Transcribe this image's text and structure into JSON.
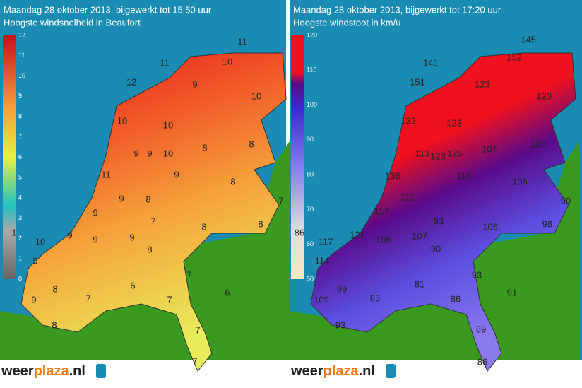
{
  "panels": [
    {
      "title": "Maandag 28 oktober 2013, bijgewerkt tot 15:50 uur",
      "subtitle": "Hoogste windsnelheid in Beaufort",
      "legend": [
        "0",
        "1",
        "2",
        "3",
        "4",
        "5",
        "6",
        "7",
        "8",
        "9",
        "10",
        "11",
        "12"
      ],
      "labels": [
        "11",
        "11",
        "10",
        "12",
        "9",
        "10",
        "10",
        "10",
        "9",
        "9",
        "10",
        "8",
        "8",
        "11",
        "9",
        "8",
        "9",
        "9",
        "8",
        "7",
        "8",
        "8",
        "7",
        "1",
        "10",
        "9",
        "9",
        "9",
        "8",
        "9",
        "7",
        "8",
        "7",
        "6",
        "7",
        "6",
        "9",
        "8",
        "7",
        "7"
      ],
      "logo": [
        "weer",
        "plaza",
        ".nl"
      ]
    },
    {
      "title": "Maandag 28 oktober 2013, bijgewerkt tot 17:20 uur",
      "subtitle": "Hoogste windstoot in km/u",
      "legend": [
        "50",
        "60",
        "70",
        "80",
        "90",
        "100",
        "110",
        "120"
      ],
      "labels": [
        "145",
        "141",
        "152",
        "151",
        "123",
        "120",
        "132",
        "123",
        "107",
        "105",
        "113",
        "123",
        "126",
        "118",
        "136",
        "106",
        "111",
        "90",
        "117",
        "121",
        "106",
        "107",
        "93",
        "106",
        "98",
        "86",
        "117",
        "90",
        "114",
        "93",
        "81",
        "99",
        "85",
        "86",
        "91",
        "109",
        "93",
        "89",
        "86"
      ],
      "logo": [
        "weer",
        "plaza",
        ".nl"
      ]
    }
  ]
}
